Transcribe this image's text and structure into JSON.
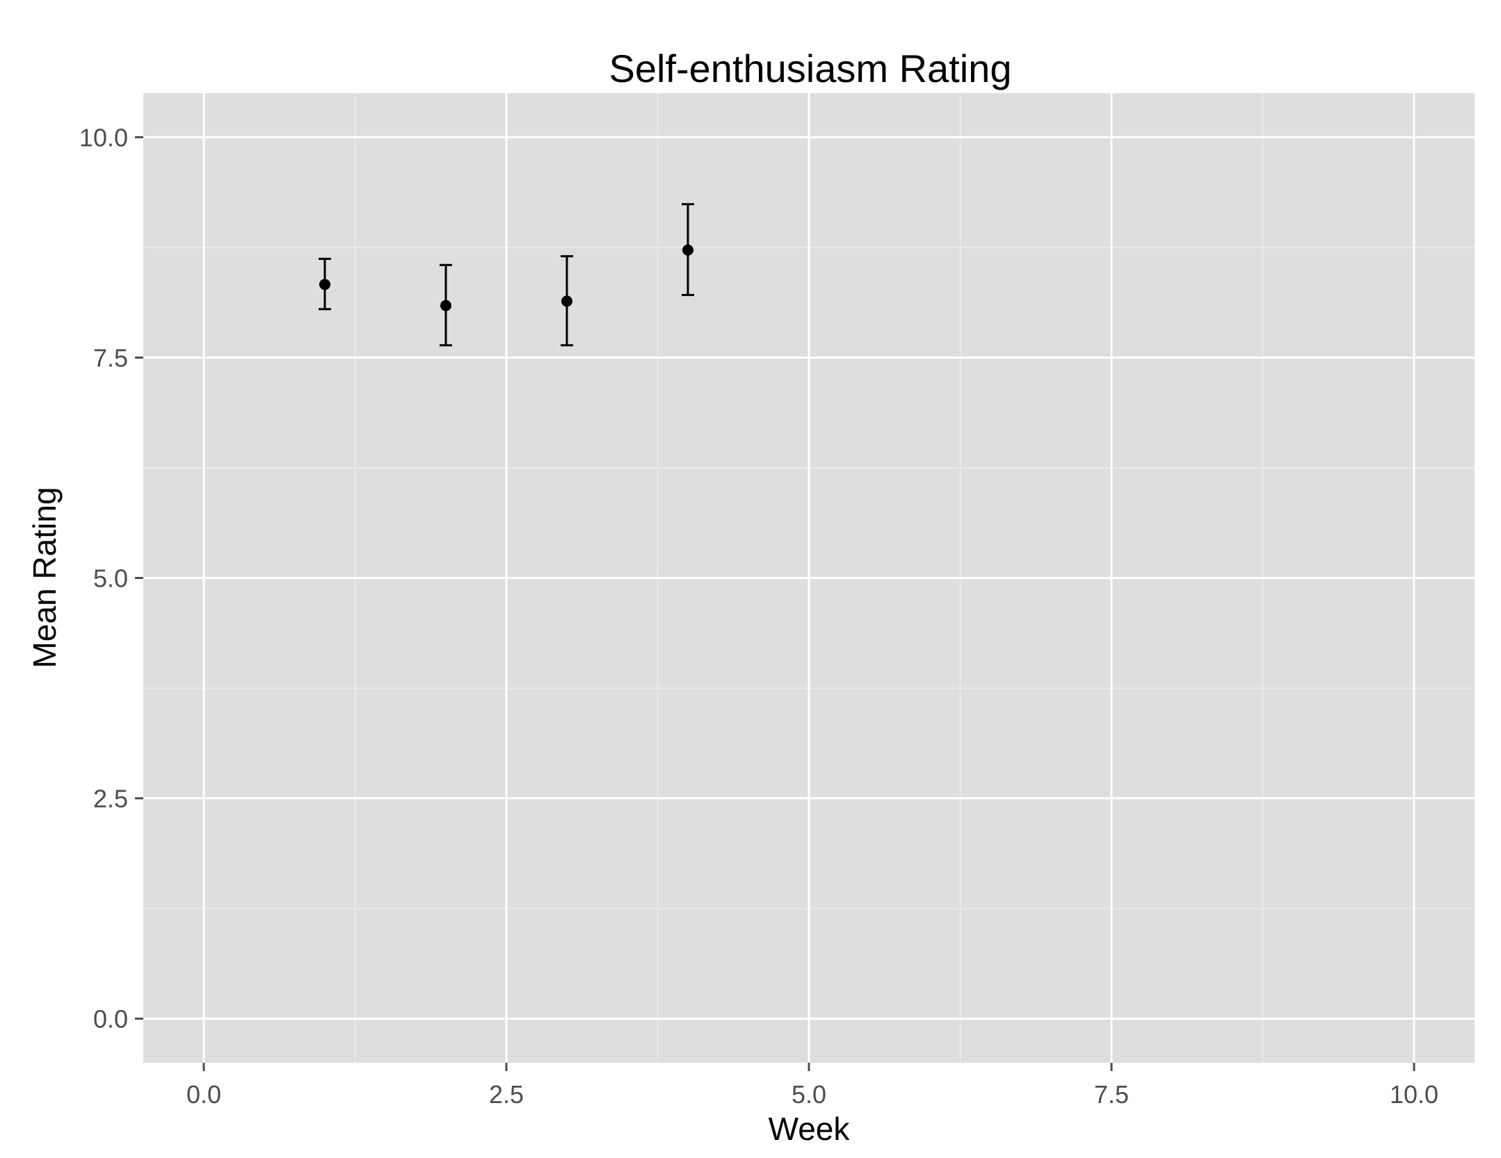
{
  "chart_data": {
    "type": "scatter",
    "title": "Self-enthusiasm Rating",
    "xlabel": "Week",
    "ylabel": "Mean Rating",
    "xlim": [
      -0.5,
      10.5
    ],
    "ylim": [
      -0.5,
      10.5
    ],
    "xticks": [
      "0.0",
      "2.5",
      "5.0",
      "7.5",
      "10.0"
    ],
    "yticks": [
      "0.0",
      "2.5",
      "5.0",
      "7.5",
      "10.0"
    ],
    "grid": true,
    "series": [
      {
        "x": [
          1,
          2,
          3,
          4
        ],
        "y": [
          8.33,
          8.09,
          8.14,
          8.72
        ],
        "error_low": [
          8.05,
          7.64,
          7.64,
          8.21
        ],
        "error_high": [
          8.62,
          8.55,
          8.65,
          9.24
        ]
      }
    ],
    "colors": {
      "panel": "#dedede",
      "grid_major": "#ffffff",
      "grid_minor": "#ededed",
      "points": "#000000"
    }
  }
}
